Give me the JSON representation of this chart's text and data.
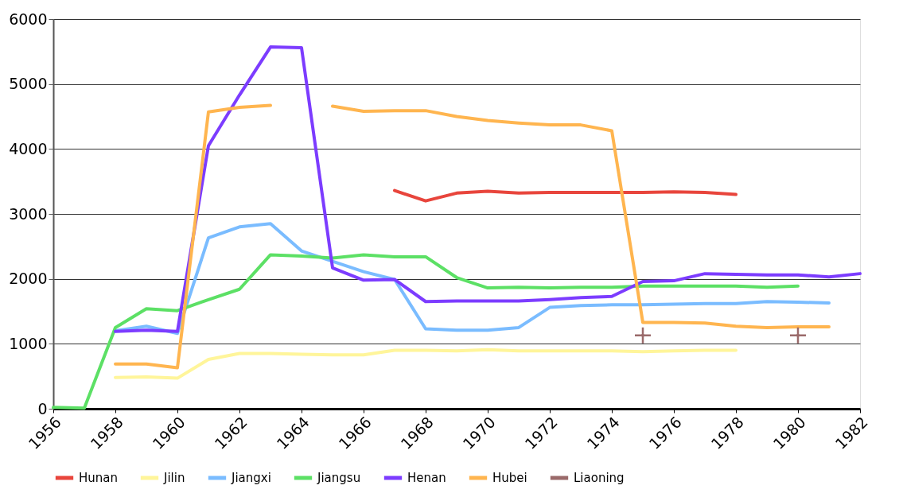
{
  "chart_data": {
    "type": "line",
    "x": [
      1956,
      1957,
      1958,
      1959,
      1960,
      1961,
      1962,
      1963,
      1964,
      1965,
      1966,
      1967,
      1968,
      1969,
      1970,
      1971,
      1972,
      1973,
      1974,
      1975,
      1976,
      1977,
      1978,
      1979,
      1980,
      1981,
      1982
    ],
    "xlim": [
      1956,
      1982
    ],
    "xticks": [
      1956,
      1958,
      1960,
      1962,
      1964,
      1966,
      1968,
      1970,
      1972,
      1974,
      1976,
      1978,
      1980,
      1982
    ],
    "ylim": [
      0,
      6000
    ],
    "yticks": [
      0,
      1000,
      2000,
      3000,
      4000,
      5000,
      6000
    ],
    "grid": "y",
    "legend": "bottom",
    "line_style": "solid",
    "series": [
      {
        "name": "Hunan",
        "color": "#e8453c",
        "marker": "none",
        "values": [
          null,
          null,
          null,
          null,
          null,
          null,
          null,
          null,
          null,
          null,
          null,
          3360,
          3200,
          3320,
          3350,
          3320,
          3330,
          3330,
          3330,
          3330,
          3340,
          3330,
          3300,
          null,
          null,
          null,
          null
        ]
      },
      {
        "name": "Jilin",
        "color": "#fff59a",
        "marker": "none",
        "values": [
          null,
          null,
          480,
          490,
          470,
          760,
          850,
          850,
          840,
          830,
          830,
          900,
          900,
          890,
          910,
          890,
          890,
          890,
          890,
          880,
          890,
          900,
          900,
          null,
          null,
          null,
          null
        ]
      },
      {
        "name": "Jiangxi",
        "color": "#7abcff",
        "marker": "none",
        "values": [
          null,
          null,
          1200,
          1270,
          1160,
          2630,
          2800,
          2850,
          2430,
          2270,
          2110,
          1990,
          1230,
          1210,
          1210,
          1250,
          1560,
          1590,
          1600,
          1600,
          1610,
          1620,
          1620,
          1650,
          1640,
          1630,
          null
        ]
      },
      {
        "name": "Jiangsu",
        "color": "#5ce065",
        "marker": "none",
        "values": [
          20,
          10,
          1250,
          1540,
          1510,
          1680,
          1840,
          2370,
          2350,
          2320,
          2370,
          2340,
          2340,
          2020,
          1860,
          1870,
          1860,
          1870,
          1870,
          1890,
          1890,
          1890,
          1890,
          1870,
          1890,
          null,
          null
        ]
      },
      {
        "name": "Henan",
        "color": "#7c3cff",
        "marker": "none",
        "values": [
          null,
          null,
          1190,
          1210,
          1190,
          4050,
          4830,
          5570,
          5560,
          2170,
          1980,
          1990,
          1650,
          1660,
          1660,
          1660,
          1680,
          1710,
          1730,
          1960,
          1970,
          2080,
          2070,
          2060,
          2060,
          2030,
          2080
        ]
      },
      {
        "name": "Hubei",
        "color": "#ffb54f",
        "marker": "none",
        "values": [
          null,
          null,
          690,
          690,
          630,
          4570,
          4640,
          4670,
          null,
          4660,
          4580,
          4590,
          4590,
          4500,
          4440,
          4400,
          4370,
          4370,
          4280,
          1330,
          1330,
          1320,
          1270,
          1250,
          1260,
          1260,
          null
        ]
      },
      {
        "name": "Liaoning",
        "color": "#9a6a6a",
        "marker": "cross",
        "values": [
          null,
          null,
          null,
          null,
          null,
          null,
          null,
          null,
          null,
          null,
          null,
          null,
          null,
          null,
          null,
          null,
          null,
          null,
          null,
          1130,
          null,
          null,
          null,
          null,
          1130,
          null,
          null
        ]
      }
    ]
  }
}
